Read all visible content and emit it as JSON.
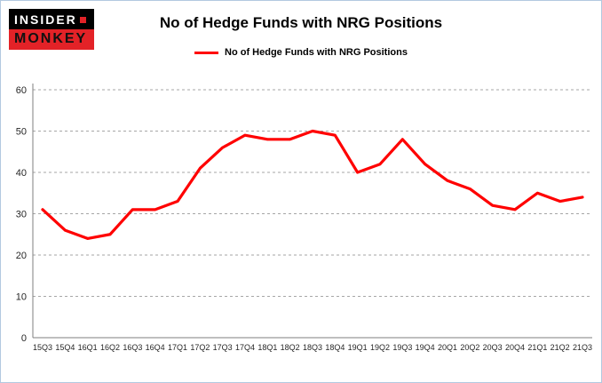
{
  "header": {
    "logo": {
      "line1": "INSIDER",
      "line2": "MONKEY"
    },
    "title": "No of Hedge Funds with NRG Positions"
  },
  "legend": {
    "label": "No of Hedge Funds with NRG Positions",
    "color": "#ff0000"
  },
  "chart_data": {
    "type": "line",
    "title": "No of Hedge Funds with NRG Positions",
    "categories": [
      "15Q3",
      "15Q4",
      "16Q1",
      "16Q2",
      "16Q3",
      "16Q4",
      "17Q1",
      "17Q2",
      "17Q3",
      "17Q4",
      "18Q1",
      "18Q2",
      "18Q3",
      "18Q4",
      "19Q1",
      "19Q2",
      "19Q3",
      "19Q4",
      "20Q1",
      "20Q2",
      "20Q3",
      "20Q4",
      "21Q1",
      "21Q2",
      "21Q3"
    ],
    "series": [
      {
        "name": "No of Hedge Funds with NRG Positions",
        "color": "#ff0000",
        "values": [
          31,
          26,
          24,
          25,
          31,
          31,
          33,
          41,
          46,
          49,
          48,
          48,
          50,
          49,
          40,
          42,
          48,
          42,
          38,
          36,
          32,
          31,
          35,
          33,
          34
        ]
      }
    ],
    "xlabel": "",
    "ylabel": "",
    "ylim": [
      0,
      60
    ],
    "yticks": [
      0,
      10,
      20,
      30,
      40,
      50,
      60
    ],
    "grid": true,
    "grid_style": "dashed",
    "legend_position": "top"
  }
}
